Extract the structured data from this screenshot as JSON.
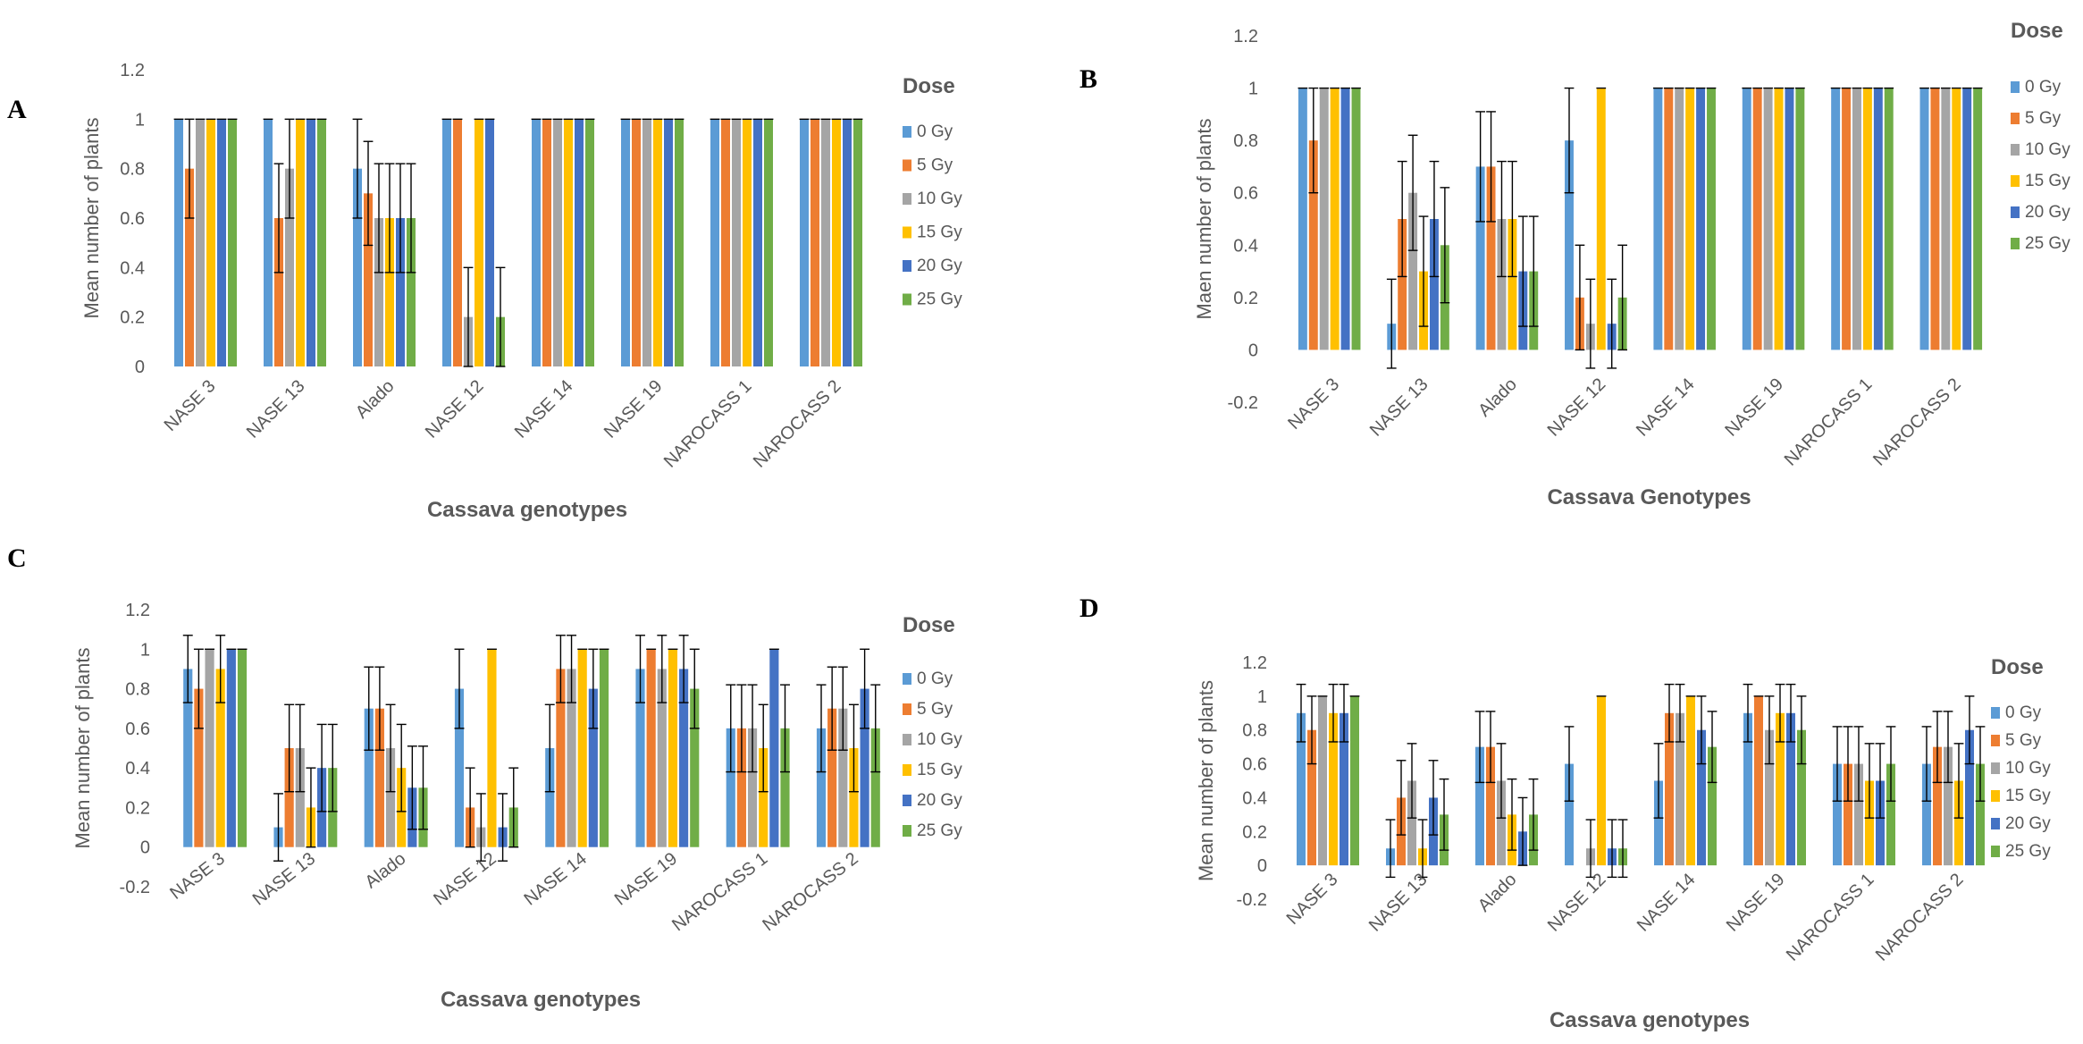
{
  "figure": {
    "panels": [
      "A",
      "B",
      "C",
      "D"
    ],
    "legend_title": "Dose",
    "dose_labels": [
      "0 Gy",
      "5 Gy",
      "10 Gy",
      "15 Gy",
      "20 Gy",
      "25 Gy"
    ],
    "series_colors": [
      "#5B9BD5",
      "#ED7D31",
      "#A5A5A5",
      "#FFC000",
      "#4472C4",
      "#70AD47"
    ]
  },
  "chart_data": [
    {
      "panel": "A",
      "type": "bar",
      "title": "",
      "xlabel": "Cassava genotypes",
      "ylabel": "Mean number of plants",
      "ylim": [
        0,
        1.2
      ],
      "yticks": [
        0,
        0.2,
        0.4,
        0.6,
        0.8,
        1,
        1.2
      ],
      "ytick_labels": [
        "0",
        "0.2",
        "0.4",
        "0.6",
        "0.8",
        "1",
        "1.2"
      ],
      "categories": [
        "NASE 3",
        "NASE 13",
        "Alado",
        "NASE 12",
        "NASE 14",
        "NASE 19",
        "NAROCASS 1",
        "NAROCASS 2"
      ],
      "legend_title": "Dose",
      "legend_position": "right",
      "series": [
        {
          "name": "0 Gy",
          "values": [
            1,
            1,
            0.8,
            1,
            1,
            1,
            1,
            1
          ],
          "errors": [
            0,
            0,
            0.2,
            0,
            0,
            0,
            0,
            0
          ]
        },
        {
          "name": "5 Gy",
          "values": [
            0.8,
            0.6,
            0.7,
            1,
            1,
            1,
            1,
            1
          ],
          "errors": [
            0.2,
            0.22,
            0.21,
            0,
            0,
            0,
            0,
            0
          ]
        },
        {
          "name": "10 Gy",
          "values": [
            1,
            0.8,
            0.6,
            0.2,
            1,
            1,
            1,
            1
          ],
          "errors": [
            0,
            0.2,
            0.22,
            0.2,
            0,
            0,
            0,
            0
          ]
        },
        {
          "name": "15 Gy",
          "values": [
            1,
            1,
            0.6,
            1,
            1,
            1,
            1,
            1
          ],
          "errors": [
            0,
            0,
            0.22,
            0,
            0,
            0,
            0,
            0
          ]
        },
        {
          "name": "20 Gy",
          "values": [
            1,
            1,
            0.6,
            1,
            1,
            1,
            1,
            1
          ],
          "errors": [
            0,
            0,
            0.22,
            0,
            0,
            0,
            0,
            0
          ]
        },
        {
          "name": "25 Gy",
          "values": [
            1,
            1,
            0.6,
            0.2,
            1,
            1,
            1,
            1
          ],
          "errors": [
            0,
            0,
            0.22,
            0.2,
            0,
            0,
            0,
            0
          ]
        }
      ]
    },
    {
      "panel": "B",
      "type": "bar",
      "title": "",
      "xlabel": "Cassava Genotypes",
      "ylabel": "Maen number of plants",
      "ylim": [
        -0.2,
        1.2
      ],
      "yticks": [
        -0.2,
        0,
        0.2,
        0.4,
        0.6,
        0.8,
        1,
        1.2
      ],
      "ytick_labels": [
        "-0.2",
        "0",
        "0.2",
        "0.4",
        "0.6",
        "0.8",
        "1",
        "1.2"
      ],
      "categories": [
        "NASE 3",
        "NASE 13",
        "Alado",
        "NASE 12",
        "NASE 14",
        "NASE 19",
        "NAROCASS 1",
        "NAROCASS 2"
      ],
      "legend_title": "Dose",
      "legend_position": "right",
      "series": [
        {
          "name": "0 Gy",
          "values": [
            1,
            0.1,
            0.7,
            0.8,
            1,
            1,
            1,
            1
          ],
          "errors": [
            0,
            0.17,
            0.21,
            0.2,
            0,
            0,
            0,
            0
          ]
        },
        {
          "name": "5 Gy",
          "values": [
            0.8,
            0.5,
            0.7,
            0.2,
            1,
            1,
            1,
            1
          ],
          "errors": [
            0.2,
            0.22,
            0.21,
            0.2,
            0,
            0,
            0,
            0
          ]
        },
        {
          "name": "10 Gy",
          "values": [
            1,
            0.6,
            0.5,
            0.1,
            1,
            1,
            1,
            1
          ],
          "errors": [
            0,
            0.22,
            0.22,
            0.17,
            0,
            0,
            0,
            0
          ]
        },
        {
          "name": "15 Gy",
          "values": [
            1,
            0.3,
            0.5,
            1,
            1,
            1,
            1,
            1
          ],
          "errors": [
            0,
            0.21,
            0.22,
            0,
            0,
            0,
            0,
            0
          ]
        },
        {
          "name": "20 Gy",
          "values": [
            1,
            0.5,
            0.3,
            0.1,
            1,
            1,
            1,
            1
          ],
          "errors": [
            0,
            0.22,
            0.21,
            0.17,
            0,
            0,
            0,
            0
          ]
        },
        {
          "name": "25 Gy",
          "values": [
            1,
            0.4,
            0.3,
            0.2,
            1,
            1,
            1,
            1
          ],
          "errors": [
            0,
            0.22,
            0.21,
            0.2,
            0,
            0,
            0,
            0
          ]
        }
      ]
    },
    {
      "panel": "C",
      "type": "bar",
      "title": "",
      "xlabel": "Cassava genotypes",
      "ylabel": "Mean number of plants",
      "ylim": [
        -0.2,
        1.2
      ],
      "yticks": [
        -0.2,
        0,
        0.2,
        0.4,
        0.6,
        0.8,
        1,
        1.2
      ],
      "ytick_labels": [
        "-0.2",
        "0",
        "0.2",
        "0.4",
        "0.6",
        "0.8",
        "1",
        "1.2"
      ],
      "categories": [
        "NASE 3",
        "NASE 13",
        "Alado",
        "NASE 12",
        "NASE 14",
        "NASE 19",
        "NAROCASS 1",
        "NAROCASS 2"
      ],
      "legend_title": "Dose",
      "legend_position": "right",
      "series": [
        {
          "name": "0 Gy",
          "values": [
            0.9,
            0.1,
            0.7,
            0.8,
            0.5,
            0.9,
            0.6,
            0.6
          ],
          "errors": [
            0.17,
            0.17,
            0.21,
            0.2,
            0.22,
            0.17,
            0.22,
            0.22
          ]
        },
        {
          "name": "5 Gy",
          "values": [
            0.8,
            0.5,
            0.7,
            0.2,
            0.9,
            1,
            0.6,
            0.7
          ],
          "errors": [
            0.2,
            0.22,
            0.21,
            0.2,
            0.17,
            0,
            0.22,
            0.21
          ]
        },
        {
          "name": "10 Gy",
          "values": [
            1,
            0.5,
            0.5,
            0.1,
            0.9,
            0.9,
            0.6,
            0.7
          ],
          "errors": [
            0,
            0.22,
            0.22,
            0.17,
            0.17,
            0.17,
            0.22,
            0.21
          ]
        },
        {
          "name": "15 Gy",
          "values": [
            0.9,
            0.2,
            0.4,
            1,
            1,
            1,
            0.5,
            0.5
          ],
          "errors": [
            0.17,
            0.2,
            0.22,
            0,
            0,
            0,
            0.22,
            0.22
          ]
        },
        {
          "name": "20 Gy",
          "values": [
            1,
            0.4,
            0.3,
            0.1,
            0.8,
            0.9,
            1,
            0.8
          ],
          "errors": [
            0,
            0.22,
            0.21,
            0.17,
            0.2,
            0.17,
            0,
            0.2
          ]
        },
        {
          "name": "25 Gy",
          "values": [
            1,
            0.4,
            0.3,
            0.2,
            1,
            0.8,
            0.6,
            0.6
          ],
          "errors": [
            0,
            0.22,
            0.21,
            0.2,
            0,
            0.2,
            0.22,
            0.22
          ]
        }
      ]
    },
    {
      "panel": "D",
      "type": "bar",
      "title": "",
      "xlabel": "Cassava genotypes",
      "ylabel": "Mean number of plants",
      "ylim": [
        -0.2,
        1.2
      ],
      "yticks": [
        -0.2,
        0,
        0.2,
        0.4,
        0.6,
        0.8,
        1,
        1.2
      ],
      "ytick_labels": [
        "-0.2",
        "0",
        "0.2",
        "0.4",
        "0.6",
        "0.8",
        "1",
        "1.2"
      ],
      "categories": [
        "NASE 3",
        "NASE 13",
        "Alado",
        "NASE 12",
        "NASE 14",
        "NASE 19",
        "NAROCASS 1",
        "NAROCASS 2"
      ],
      "legend_title": "Dose",
      "legend_position": "right",
      "series": [
        {
          "name": "0 Gy",
          "values": [
            0.9,
            0.1,
            0.7,
            0.6,
            0.5,
            0.9,
            0.6,
            0.6
          ],
          "errors": [
            0.17,
            0.17,
            0.21,
            0.22,
            0.22,
            0.17,
            0.22,
            0.22
          ]
        },
        {
          "name": "5 Gy",
          "values": [
            0.8,
            0.4,
            0.7,
            0,
            0.9,
            1,
            0.6,
            0.7
          ],
          "errors": [
            0.2,
            0.22,
            0.21,
            0,
            0.17,
            0,
            0.22,
            0.21
          ]
        },
        {
          "name": "10 Gy",
          "values": [
            1,
            0.5,
            0.5,
            0.1,
            0.9,
            0.8,
            0.6,
            0.7
          ],
          "errors": [
            0,
            0.22,
            0.22,
            0.17,
            0.17,
            0.2,
            0.22,
            0.21
          ]
        },
        {
          "name": "15 Gy",
          "values": [
            0.9,
            0.1,
            0.3,
            1,
            1,
            0.9,
            0.5,
            0.5
          ],
          "errors": [
            0.17,
            0.17,
            0.21,
            0,
            0,
            0.17,
            0.22,
            0.22
          ]
        },
        {
          "name": "20 Gy",
          "values": [
            0.9,
            0.4,
            0.2,
            0.1,
            0.8,
            0.9,
            0.5,
            0.8
          ],
          "errors": [
            0.17,
            0.22,
            0.2,
            0.17,
            0.2,
            0.17,
            0.22,
            0.2
          ]
        },
        {
          "name": "25 Gy",
          "values": [
            1,
            0.3,
            0.3,
            0.1,
            0.7,
            0.8,
            0.6,
            0.6
          ],
          "errors": [
            0,
            0.21,
            0.21,
            0.17,
            0.21,
            0.2,
            0.22,
            0.22
          ]
        }
      ]
    }
  ]
}
